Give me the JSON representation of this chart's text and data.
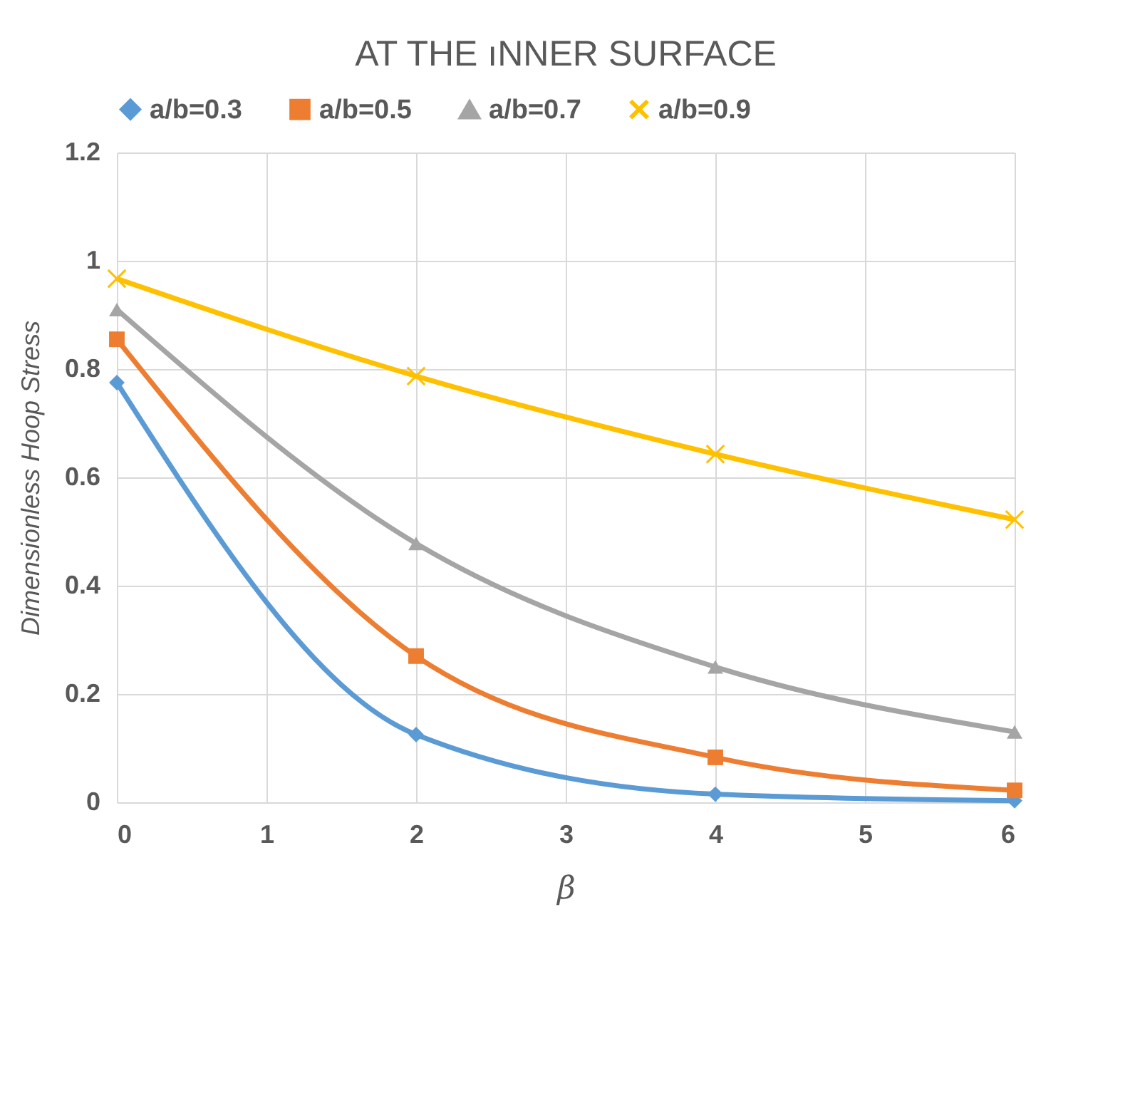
{
  "chart_data": {
    "type": "line",
    "title": "AT THE ıNNER SURFACE",
    "xlabel": "β",
    "ylabel": "Dimensionless Hoop Stress",
    "x": [
      0,
      2,
      4,
      6
    ],
    "series": [
      {
        "name": "a/b=0.3",
        "color": "#5b9bd5",
        "marker": "diamond",
        "values": [
          0.775,
          0.125,
          0.015,
          0.003
        ]
      },
      {
        "name": "a/b=0.5",
        "color": "#ed7d31",
        "marker": "square",
        "values": [
          0.855,
          0.27,
          0.083,
          0.022
        ]
      },
      {
        "name": "a/b=0.7",
        "color": "#a5a5a5",
        "marker": "triangle",
        "values": [
          0.91,
          0.478,
          0.25,
          0.13
        ]
      },
      {
        "name": "a/b=0.9",
        "color": "#ffc000",
        "marker": "cross",
        "values": [
          0.967,
          0.787,
          0.643,
          0.522
        ]
      }
    ],
    "xlim": [
      0,
      6
    ],
    "xticks": [
      0,
      1,
      2,
      3,
      4,
      5,
      6
    ],
    "ylim": [
      0,
      1.2
    ],
    "yticks": [
      0,
      0.2,
      0.4,
      0.6,
      0.8,
      1,
      1.2
    ],
    "grid": true,
    "legend": "top",
    "line_style": "solid"
  }
}
